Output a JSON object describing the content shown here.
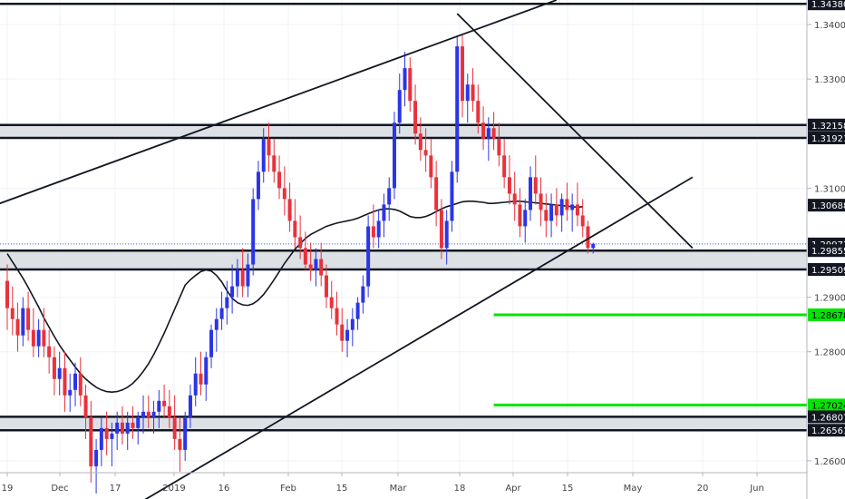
{
  "chart_data": {
    "type": "candlestick",
    "instrument": "",
    "x_ticks": [
      "19",
      "Dec",
      "17",
      "2019",
      "16",
      "Feb",
      "15",
      "Mar",
      "18",
      "Apr",
      "15",
      "May",
      "20",
      "Jun"
    ],
    "y_ticks": [
      "1.34000",
      "1.33000",
      "1.31000",
      "1.29000",
      "1.28000",
      "1.26000"
    ],
    "ylim": [
      1.253,
      1.3445
    ],
    "price_labels": [
      {
        "value": 1.3438,
        "text": "1.34380",
        "style": "dark"
      },
      {
        "value": 1.32158,
        "text": "1.32158",
        "style": "dark"
      },
      {
        "value": 1.31921,
        "text": "1.31921",
        "style": "dark"
      },
      {
        "value": 1.30688,
        "text": "1.30688",
        "style": "dark"
      },
      {
        "value": 1.29977,
        "text": "1.29977",
        "style": "dark"
      },
      {
        "value": 1.29855,
        "text": "1.29855",
        "style": "dark"
      },
      {
        "value": 1.29509,
        "text": "1.29509",
        "style": "dark"
      },
      {
        "value": 1.28678,
        "text": "1.28678",
        "style": "green"
      },
      {
        "value": 1.27024,
        "text": "1.27024",
        "style": "green"
      },
      {
        "value": 1.26807,
        "text": "1.26807",
        "style": "dark"
      },
      {
        "value": 1.26561,
        "text": "1.26561",
        "style": "dark"
      }
    ],
    "zones": [
      {
        "top": 1.32158,
        "bottom": 1.31921
      },
      {
        "top": 1.29855,
        "bottom": 1.29509
      },
      {
        "top": 1.26807,
        "bottom": 1.26561
      }
    ],
    "top_line": 1.3438,
    "current_price": 1.29977,
    "green_targets": [
      {
        "value": 1.28678,
        "from_index": 93
      },
      {
        "value": 1.27024,
        "from_index": 93
      }
    ],
    "trendlines": [
      {
        "p1": [
          -2,
          1.307
        ],
        "p2": [
          105,
          1.3445
        ]
      },
      {
        "p1": [
          23,
          1.251
        ],
        "p2": [
          131,
          1.312
        ]
      },
      {
        "p1": [
          86,
          1.342
        ],
        "p2": [
          131,
          1.299
        ]
      }
    ],
    "ohlc": [
      [
        1.293,
        1.296,
        1.284,
        1.288
      ],
      [
        1.288,
        1.292,
        1.283,
        1.286
      ],
      [
        1.286,
        1.289,
        1.28,
        1.283
      ],
      [
        1.283,
        1.29,
        1.281,
        1.288
      ],
      [
        1.288,
        1.291,
        1.282,
        1.284
      ],
      [
        1.284,
        1.288,
        1.279,
        1.281
      ],
      [
        1.281,
        1.286,
        1.279,
        1.284
      ],
      [
        1.284,
        1.288,
        1.279,
        1.281
      ],
      [
        1.281,
        1.284,
        1.276,
        1.279
      ],
      [
        1.279,
        1.281,
        1.272,
        1.275
      ],
      [
        1.275,
        1.28,
        1.272,
        1.277
      ],
      [
        1.277,
        1.28,
        1.269,
        1.272
      ],
      [
        1.272,
        1.276,
        1.269,
        1.273
      ],
      [
        1.273,
        1.278,
        1.27,
        1.276
      ],
      [
        1.276,
        1.279,
        1.27,
        1.272
      ],
      [
        1.272,
        1.274,
        1.264,
        1.268
      ],
      [
        1.268,
        1.271,
        1.256,
        1.259
      ],
      [
        1.259,
        1.264,
        1.254,
        1.262
      ],
      [
        1.262,
        1.268,
        1.259,
        1.266
      ],
      [
        1.266,
        1.269,
        1.261,
        1.264
      ],
      [
        1.264,
        1.267,
        1.259,
        1.265
      ],
      [
        1.265,
        1.269,
        1.262,
        1.267
      ],
      [
        1.267,
        1.27,
        1.263,
        1.265
      ],
      [
        1.265,
        1.269,
        1.262,
        1.267
      ],
      [
        1.267,
        1.27,
        1.264,
        1.266
      ],
      [
        1.266,
        1.269,
        1.263,
        1.268
      ],
      [
        1.268,
        1.272,
        1.265,
        1.269
      ],
      [
        1.269,
        1.272,
        1.266,
        1.268
      ],
      [
        1.268,
        1.271,
        1.265,
        1.269
      ],
      [
        1.269,
        1.273,
        1.266,
        1.271
      ],
      [
        1.271,
        1.274,
        1.268,
        1.27
      ],
      [
        1.27,
        1.273,
        1.266,
        1.268
      ],
      [
        1.268,
        1.272,
        1.262,
        1.264
      ],
      [
        1.264,
        1.268,
        1.258,
        1.262
      ],
      [
        1.262,
        1.269,
        1.26,
        1.268
      ],
      [
        1.268,
        1.274,
        1.266,
        1.272
      ],
      [
        1.272,
        1.279,
        1.27,
        1.276
      ],
      [
        1.276,
        1.28,
        1.272,
        1.274
      ],
      [
        1.274,
        1.28,
        1.271,
        1.279
      ],
      [
        1.279,
        1.285,
        1.277,
        1.284
      ],
      [
        1.284,
        1.288,
        1.28,
        1.286
      ],
      [
        1.286,
        1.291,
        1.284,
        1.288
      ],
      [
        1.288,
        1.293,
        1.285,
        1.29
      ],
      [
        1.29,
        1.296,
        1.287,
        1.292
      ],
      [
        1.292,
        1.297,
        1.29,
        1.295
      ],
      [
        1.295,
        1.299,
        1.29,
        1.292
      ],
      [
        1.292,
        1.298,
        1.29,
        1.296
      ],
      [
        1.296,
        1.31,
        1.294,
        1.308
      ],
      [
        1.308,
        1.315,
        1.306,
        1.313
      ],
      [
        1.313,
        1.321,
        1.311,
        1.319
      ],
      [
        1.319,
        1.322,
        1.313,
        1.316
      ],
      [
        1.316,
        1.319,
        1.311,
        1.313
      ],
      [
        1.313,
        1.316,
        1.308,
        1.31
      ],
      [
        1.31,
        1.314,
        1.305,
        1.308
      ],
      [
        1.308,
        1.311,
        1.302,
        1.304
      ],
      [
        1.304,
        1.308,
        1.299,
        1.301
      ],
      [
        1.301,
        1.305,
        1.297,
        1.299
      ],
      [
        1.299,
        1.302,
        1.295,
        1.296
      ],
      [
        1.296,
        1.3,
        1.293,
        1.295
      ],
      [
        1.295,
        1.299,
        1.292,
        1.297
      ],
      [
        1.297,
        1.3,
        1.292,
        1.294
      ],
      [
        1.294,
        1.296,
        1.288,
        1.29
      ],
      [
        1.29,
        1.293,
        1.286,
        1.288
      ],
      [
        1.288,
        1.291,
        1.283,
        1.285
      ],
      [
        1.285,
        1.288,
        1.28,
        1.282
      ],
      [
        1.282,
        1.286,
        1.279,
        1.284
      ],
      [
        1.284,
        1.288,
        1.281,
        1.286
      ],
      [
        1.286,
        1.29,
        1.284,
        1.289
      ],
      [
        1.289,
        1.294,
        1.287,
        1.292
      ],
      [
        1.292,
        1.305,
        1.29,
        1.303
      ],
      [
        1.303,
        1.307,
        1.299,
        1.301
      ],
      [
        1.301,
        1.306,
        1.299,
        1.304
      ],
      [
        1.304,
        1.309,
        1.301,
        1.307
      ],
      [
        1.307,
        1.312,
        1.304,
        1.31
      ],
      [
        1.31,
        1.324,
        1.308,
        1.322
      ],
      [
        1.322,
        1.331,
        1.32,
        1.328
      ],
      [
        1.328,
        1.335,
        1.325,
        1.332
      ],
      [
        1.332,
        1.334,
        1.324,
        1.326
      ],
      [
        1.326,
        1.329,
        1.318,
        1.32
      ],
      [
        1.32,
        1.323,
        1.315,
        1.317
      ],
      [
        1.317,
        1.321,
        1.313,
        1.316
      ],
      [
        1.316,
        1.319,
        1.31,
        1.312
      ],
      [
        1.312,
        1.315,
        1.303,
        1.306
      ],
      [
        1.306,
        1.308,
        1.297,
        1.299
      ],
      [
        1.299,
        1.306,
        1.296,
        1.304
      ],
      [
        1.304,
        1.315,
        1.302,
        1.313
      ],
      [
        1.313,
        1.338,
        1.311,
        1.336
      ],
      [
        1.336,
        1.338,
        1.323,
        1.326
      ],
      [
        1.326,
        1.331,
        1.322,
        1.329
      ],
      [
        1.329,
        1.332,
        1.324,
        1.326
      ],
      [
        1.326,
        1.329,
        1.32,
        1.322
      ],
      [
        1.322,
        1.325,
        1.317,
        1.319
      ],
      [
        1.319,
        1.323,
        1.315,
        1.321
      ],
      [
        1.321,
        1.324,
        1.317,
        1.319
      ],
      [
        1.319,
        1.322,
        1.314,
        1.316
      ],
      [
        1.316,
        1.319,
        1.31,
        1.312
      ],
      [
        1.312,
        1.316,
        1.307,
        1.309
      ],
      [
        1.309,
        1.313,
        1.304,
        1.307
      ],
      [
        1.307,
        1.31,
        1.301,
        1.303
      ],
      [
        1.303,
        1.308,
        1.3,
        1.306
      ],
      [
        1.306,
        1.314,
        1.304,
        1.312
      ],
      [
        1.312,
        1.316,
        1.307,
        1.309
      ],
      [
        1.309,
        1.312,
        1.303,
        1.306
      ],
      [
        1.306,
        1.309,
        1.301,
        1.304
      ],
      [
        1.304,
        1.309,
        1.301,
        1.307
      ],
      [
        1.307,
        1.31,
        1.303,
        1.305
      ],
      [
        1.305,
        1.309,
        1.302,
        1.308
      ],
      [
        1.308,
        1.311,
        1.304,
        1.306
      ],
      [
        1.306,
        1.309,
        1.302,
        1.307
      ],
      [
        1.307,
        1.311,
        1.303,
        1.305
      ],
      [
        1.305,
        1.308,
        1.301,
        1.303
      ],
      [
        1.303,
        1.304,
        1.298,
        1.299
      ],
      [
        1.299,
        1.3,
        1.298,
        1.2998
      ]
    ],
    "ma": [
      1.298,
      1.2965,
      1.295,
      1.2935,
      1.2918,
      1.29,
      1.2882,
      1.2862,
      1.2845,
      1.2828,
      1.2812,
      1.2798,
      1.2785,
      1.2772,
      1.276,
      1.275,
      1.2742,
      1.2735,
      1.273,
      1.2727,
      1.2726,
      1.2727,
      1.273,
      1.2735,
      1.2742,
      1.2752,
      1.2764,
      1.2778,
      1.2795,
      1.2814,
      1.2834,
      1.2856,
      1.2878,
      1.29,
      1.2922,
      1.2932,
      1.294,
      1.2947,
      1.295,
      1.2948,
      1.294,
      1.2928,
      1.2912,
      1.2898,
      1.289,
      1.2886,
      1.2885,
      1.2888,
      1.2895,
      1.2905,
      1.2918,
      1.2932,
      1.2947,
      1.2962,
      1.2975,
      1.2988,
      1.2998,
      1.3008,
      1.3015,
      1.302,
      1.3025,
      1.303,
      1.3033,
      1.3036,
      1.3038,
      1.304,
      1.3042,
      1.3045,
      1.3049,
      1.3053,
      1.3057,
      1.306,
      1.3062,
      1.3062,
      1.3061,
      1.3058,
      1.3053,
      1.3048,
      1.3046,
      1.3046,
      1.3048,
      1.3052,
      1.3057,
      1.3062,
      1.3066,
      1.3069,
      1.3072,
      1.3075,
      1.3076,
      1.3076,
      1.3075,
      1.3074,
      1.3072,
      1.3072,
      1.3073,
      1.3074,
      1.3075,
      1.3076,
      1.3076,
      1.3075,
      1.3074,
      1.3073,
      1.3072,
      1.3071,
      1.307,
      1.3069,
      1.3068,
      1.3067,
      1.3066,
      1.3065,
      1.3066
    ]
  }
}
